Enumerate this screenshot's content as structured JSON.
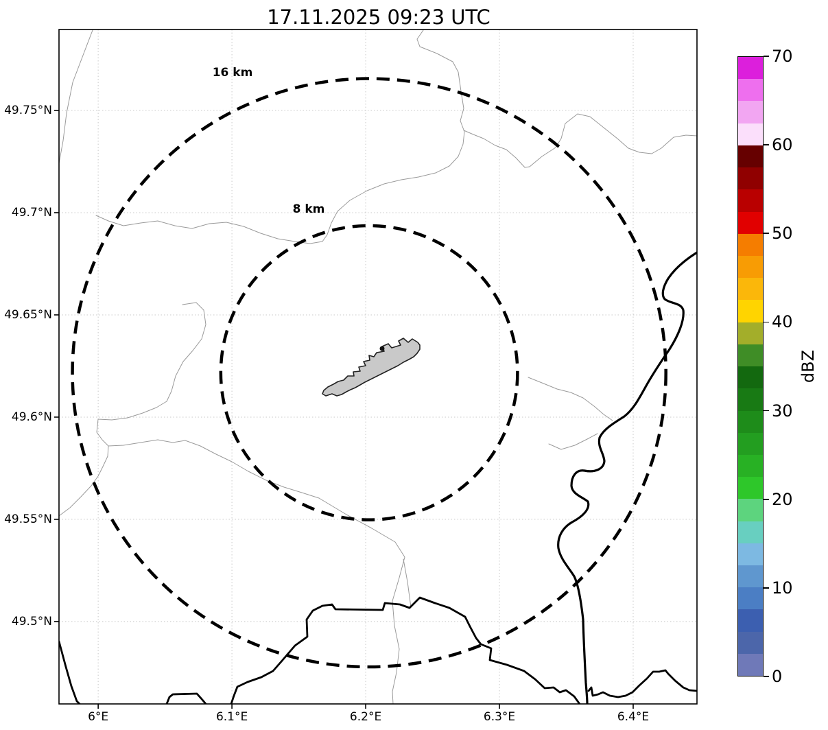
{
  "title": "17.11.2025 09:23 UTC",
  "chart_data": {
    "type": "map",
    "title": "17.11.2025 09:23 UTC",
    "description": "Weather radar coverage map around Luxembourg-Findel with 8 km and 16 km range rings, commune boundaries (thin grey), country border and Moselle river (thick black), dBZ reflectivity colorbar (no echoes shown)",
    "grid": true,
    "x_axis": {
      "range": [
        5.9707,
        6.4477
      ],
      "ticks": [
        6.0,
        6.1,
        6.2,
        6.3,
        6.4
      ],
      "tick_labels": [
        "6°E",
        "6.1°E",
        "6.2°E",
        "6.3°E",
        "6.4°E"
      ]
    },
    "y_axis": {
      "range": [
        49.4597,
        49.7896
      ],
      "ticks": [
        49.75,
        49.7,
        49.65,
        49.6,
        49.55,
        49.5
      ],
      "tick_labels": [
        "49.75°N",
        "49.7°N",
        "49.65°N",
        "49.6°N",
        "49.55°N",
        "49.5°N"
      ]
    },
    "radar_site": {
      "lon": 6.2026,
      "lat": 49.6217
    },
    "range_rings": [
      {
        "label": "16 km",
        "radius_km": 16
      },
      {
        "label": "8 km",
        "radius_km": 8
      }
    ],
    "colorbar": {
      "label": "dBZ",
      "min": 0,
      "max": 70,
      "step": 2.5,
      "ticks": [
        0,
        10,
        20,
        30,
        40,
        50,
        60,
        70
      ],
      "colors_bottom_to_top": [
        "#6f79b8",
        "#4c66aa",
        "#3c5fb0",
        "#4b7ec4",
        "#5f97cf",
        "#7db9e2",
        "#68cfc0",
        "#5dd47e",
        "#2ec72a",
        "#28b124",
        "#239e20",
        "#1e8c1a",
        "#187a14",
        "#13690f",
        "#3f8d26",
        "#a3ae2a",
        "#ffd400",
        "#fbb70a",
        "#f89c04",
        "#f57d00",
        "#e10000",
        "#b90000",
        "#900000",
        "#660000",
        "#fbdffb",
        "#f2a6f2",
        "#ee6fee",
        "#dc1fdc"
      ]
    }
  }
}
